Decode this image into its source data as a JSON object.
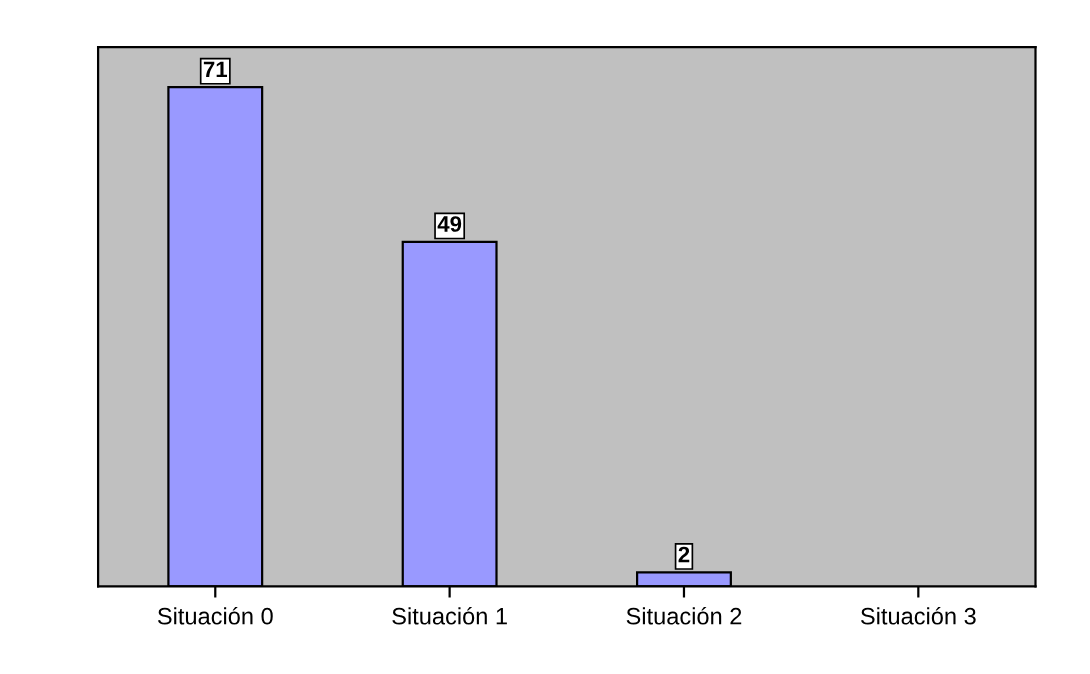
{
  "chart_data": {
    "type": "bar",
    "categories": [
      "Situación 0",
      "Situación 1",
      "Situación 2",
      "Situación 3"
    ],
    "values": [
      71,
      49,
      2,
      null
    ],
    "color": "#9999ff",
    "data_labels": true,
    "tick_labels": "x"
  }
}
